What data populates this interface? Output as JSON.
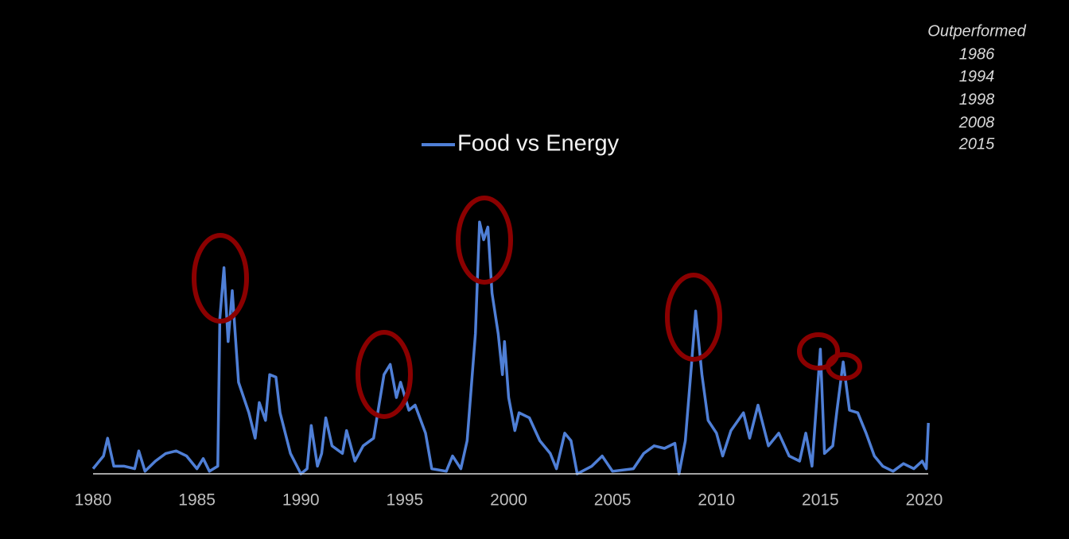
{
  "chart_data": {
    "type": "line",
    "annotations": [
      "Outperformed",
      "1986",
      "1994",
      "1998",
      "2008",
      "2015"
    ],
    "xlim": [
      1980,
      2020
    ],
    "xticks": [
      1980,
      1985,
      1990,
      1995,
      2000,
      2005,
      2010,
      2015,
      2020
    ],
    "ylim": [
      0,
      100
    ],
    "legend": "top",
    "x": [
      1980.0,
      1980.5,
      1980.7,
      1981.0,
      1981.5,
      1982.0,
      1982.2,
      1982.5,
      1983.0,
      1983.5,
      1984.0,
      1984.5,
      1985.0,
      1985.3,
      1985.6,
      1986.0,
      1986.1,
      1986.3,
      1986.5,
      1986.7,
      1987.0,
      1987.5,
      1987.8,
      1988.0,
      1988.3,
      1988.5,
      1988.8,
      1989.0,
      1989.5,
      1990.0,
      1990.3,
      1990.5,
      1990.8,
      1991.0,
      1991.2,
      1991.5,
      1992.0,
      1992.2,
      1992.6,
      1993.0,
      1993.5,
      1994.0,
      1994.3,
      1994.6,
      1994.8,
      1995.2,
      1995.5,
      1996.0,
      1996.3,
      1997.0,
      1997.3,
      1997.7,
      1998.0,
      1998.4,
      1998.6,
      1998.8,
      1999.0,
      1999.2,
      1999.5,
      1999.7,
      1999.8,
      2000.0,
      2000.3,
      2000.5,
      2001.0,
      2001.5,
      2002.0,
      2002.3,
      2002.7,
      2003.0,
      2003.3,
      2004.0,
      2004.5,
      2005.0,
      2006.0,
      2006.5,
      2007.0,
      2007.5,
      2008.0,
      2008.2,
      2008.5,
      2008.8,
      2009.0,
      2009.3,
      2009.6,
      2010.0,
      2010.3,
      2010.7,
      2011.3,
      2011.6,
      2012.0,
      2012.5,
      2013.0,
      2013.5,
      2014.0,
      2014.3,
      2014.6,
      2015.0,
      2015.2,
      2015.6,
      2015.8,
      2016.1,
      2016.4,
      2016.8,
      2017.2,
      2017.6,
      2018.0,
      2018.5,
      2019.0,
      2019.5,
      2019.9,
      2020.1,
      2020.2
    ],
    "series": [
      {
        "name": "Food vs Energy",
        "color": "#4f7fd6",
        "values": [
          2,
          7,
          14,
          3,
          3,
          2,
          9,
          1,
          5,
          8,
          9,
          7,
          2,
          6,
          1,
          3,
          61,
          81,
          52,
          72,
          36,
          24,
          14,
          28,
          21,
          39,
          38,
          24,
          8,
          0,
          2,
          19,
          3,
          8,
          22,
          11,
          8,
          17,
          5,
          11,
          14,
          39,
          43,
          30,
          36,
          25,
          27,
          16,
          2,
          1,
          7,
          2,
          13,
          55,
          99,
          92,
          97,
          71,
          55,
          39,
          52,
          30,
          17,
          24,
          22,
          13,
          8,
          2,
          16,
          13,
          0,
          3,
          7,
          1,
          2,
          8,
          11,
          10,
          12,
          0,
          13,
          43,
          64,
          39,
          21,
          16,
          7,
          17,
          24,
          14,
          27,
          11,
          16,
          7,
          5,
          16,
          3,
          49,
          8,
          11,
          25,
          44,
          25,
          24,
          16,
          7,
          3,
          1,
          4,
          2,
          5,
          2,
          20
        ]
      }
    ]
  }
}
